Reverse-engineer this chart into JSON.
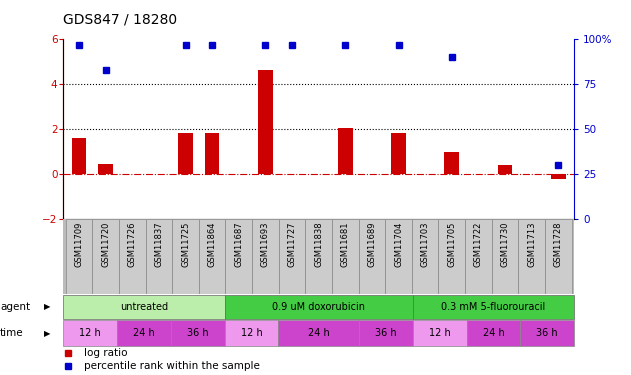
{
  "title": "GDS847 / 18280",
  "samples": [
    "GSM11709",
    "GSM11720",
    "GSM11726",
    "GSM11837",
    "GSM11725",
    "GSM11864",
    "GSM11687",
    "GSM11693",
    "GSM11727",
    "GSM11838",
    "GSM11681",
    "GSM11689",
    "GSM11704",
    "GSM11703",
    "GSM11705",
    "GSM11722",
    "GSM11730",
    "GSM11713",
    "GSM11728"
  ],
  "log_ratio": [
    1.6,
    0.45,
    0.0,
    0.0,
    1.85,
    1.85,
    0.0,
    4.65,
    0.0,
    0.0,
    2.05,
    0.0,
    1.85,
    0.0,
    1.0,
    0.0,
    0.4,
    0.0,
    -0.2
  ],
  "percentile": [
    97,
    83,
    null,
    null,
    97,
    97,
    null,
    97,
    97,
    null,
    97,
    null,
    97,
    null,
    90,
    null,
    null,
    null,
    30
  ],
  "ylim_left": [
    -2,
    6
  ],
  "ylim_right": [
    0,
    100
  ],
  "yticks_left": [
    -2,
    0,
    2,
    4,
    6
  ],
  "yticks_right": [
    0,
    25,
    50,
    75,
    100
  ],
  "bar_color": "#cc0000",
  "dot_color": "#0000cc",
  "zero_line_color": "#cc0000",
  "hline_color": "#000000",
  "agent_groups": [
    {
      "label": "untreated",
      "start": 0,
      "end": 6,
      "color": "#bbeeaa"
    },
    {
      "label": "0.9 uM doxorubicin",
      "start": 6,
      "end": 13,
      "color": "#44cc44"
    },
    {
      "label": "0.3 mM 5-fluorouracil",
      "start": 13,
      "end": 19,
      "color": "#44cc44"
    }
  ],
  "time_groups": [
    {
      "label": "12 h",
      "start": 0,
      "end": 2,
      "color": "#ee88ee"
    },
    {
      "label": "24 h",
      "start": 2,
      "end": 4,
      "color": "#cc44cc"
    },
    {
      "label": "36 h",
      "start": 4,
      "end": 6,
      "color": "#cc44cc"
    },
    {
      "label": "12 h",
      "start": 6,
      "end": 8,
      "color": "#ee88ee"
    },
    {
      "label": "24 h",
      "start": 8,
      "end": 11,
      "color": "#cc44cc"
    },
    {
      "label": "36 h",
      "start": 11,
      "end": 13,
      "color": "#cc44cc"
    },
    {
      "label": "12 h",
      "start": 13,
      "end": 15,
      "color": "#ee88ee"
    },
    {
      "label": "24 h",
      "start": 15,
      "end": 17,
      "color": "#cc44cc"
    },
    {
      "label": "36 h",
      "start": 17,
      "end": 19,
      "color": "#cc44cc"
    }
  ],
  "legend_items": [
    {
      "label": "log ratio",
      "color": "#cc0000"
    },
    {
      "label": "percentile rank within the sample",
      "color": "#0000cc"
    }
  ],
  "sample_col_color": "#cccccc",
  "sample_border_color": "#888888"
}
